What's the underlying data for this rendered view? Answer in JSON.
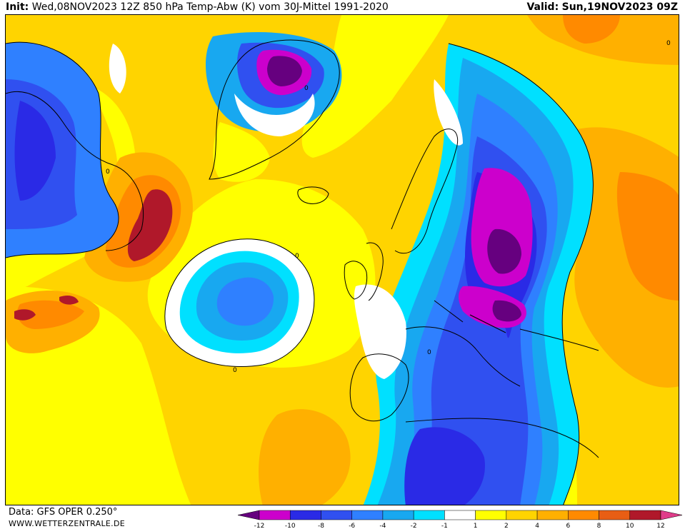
{
  "header": {
    "init_label": "Init:",
    "init_value": "Wed,08NOV2023 12Z",
    "description": "850 hPa Temp-Abw (K) vom 30J-Mittel 1991-2020",
    "valid_label": "Valid:",
    "valid_value": "Sun,19NOV2023 09Z"
  },
  "footer": {
    "source": "Data: GFS OPER 0.250°",
    "site": "WWW.WETTERZENTRALE.DE"
  },
  "legend": {
    "ticks": [
      "-12",
      "-10",
      "-8",
      "-6",
      "-4",
      "-2",
      "-1",
      "1",
      "2",
      "4",
      "6",
      "8",
      "10",
      "12"
    ],
    "colors": [
      "#66007f",
      "#cc00cc",
      "#2a2ae6",
      "#3050f0",
      "#2f80ff",
      "#18a8f0",
      "#00e0ff",
      "#ffffff",
      "#ffff00",
      "#ffd400",
      "#ffb000",
      "#ff8a00",
      "#e85e14",
      "#b0182a",
      "#e03c8a"
    ]
  },
  "map_labels": {
    "contour_zero": "0"
  }
}
